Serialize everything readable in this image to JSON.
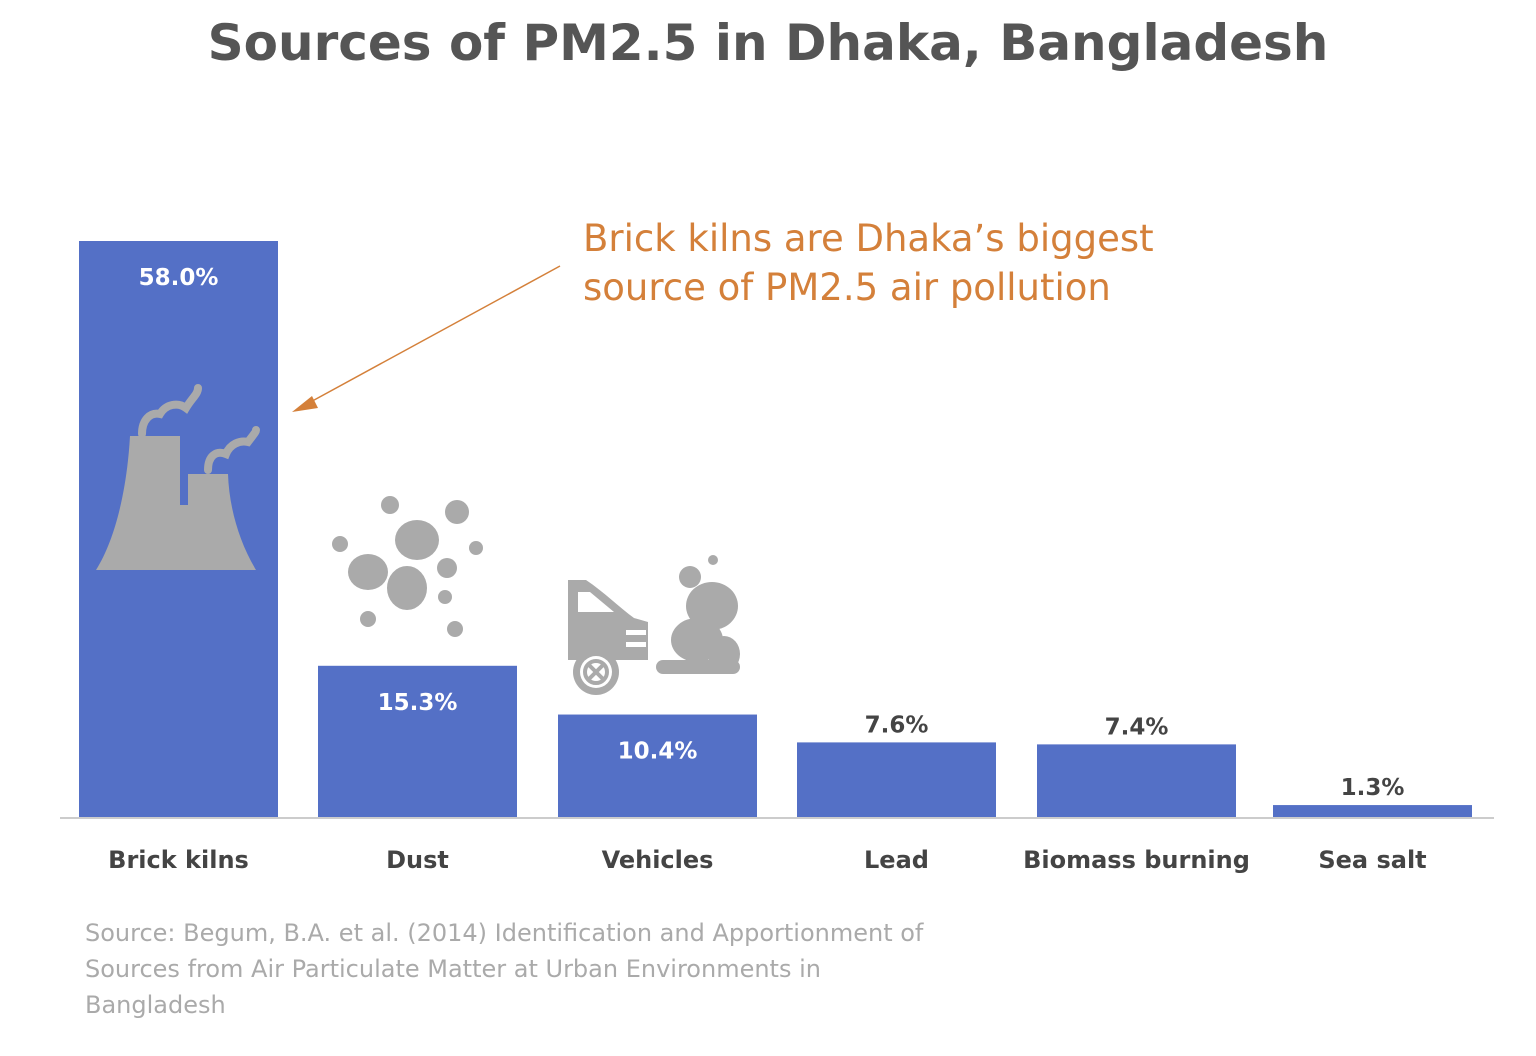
{
  "title": "Sources of PM2.5 in Dhaka, Bangladesh",
  "annotation": {
    "line1": "Brick kilns are Dhaka’s biggest",
    "line2": "source of PM2.5 air pollution"
  },
  "source_note": {
    "line1": "Source: Begum, B.A. et al. (2014) Identification and Apportionment of",
    "line2": "Sources from Air Particulate Matter at Urban Environments in",
    "line3": "Bangladesh"
  },
  "colors": {
    "bar": "#5470C6",
    "icon": "#AAAAAA",
    "annotation": "#D4803A",
    "title": "#555555",
    "source": "#AAAAAA"
  },
  "icons": [
    "factory-smoke-icon",
    "dust-particles-icon",
    "car-exhaust-icon"
  ],
  "chart_data": {
    "type": "bar",
    "title": "Sources of PM2.5 in Dhaka, Bangladesh",
    "categories": [
      "Brick kilns",
      "Dust",
      "Vehicles",
      "Lead",
      "Biomass burning",
      "Sea salt"
    ],
    "values": [
      58.0,
      15.3,
      10.4,
      7.6,
      7.4,
      1.3
    ],
    "value_labels": [
      "58.0%",
      "15.3%",
      "10.4%",
      "7.6%",
      "7.4%",
      "1.3%"
    ],
    "xlabel": "",
    "ylabel": "",
    "ylim": [
      0,
      58
    ],
    "grid": false,
    "legend": "none"
  }
}
